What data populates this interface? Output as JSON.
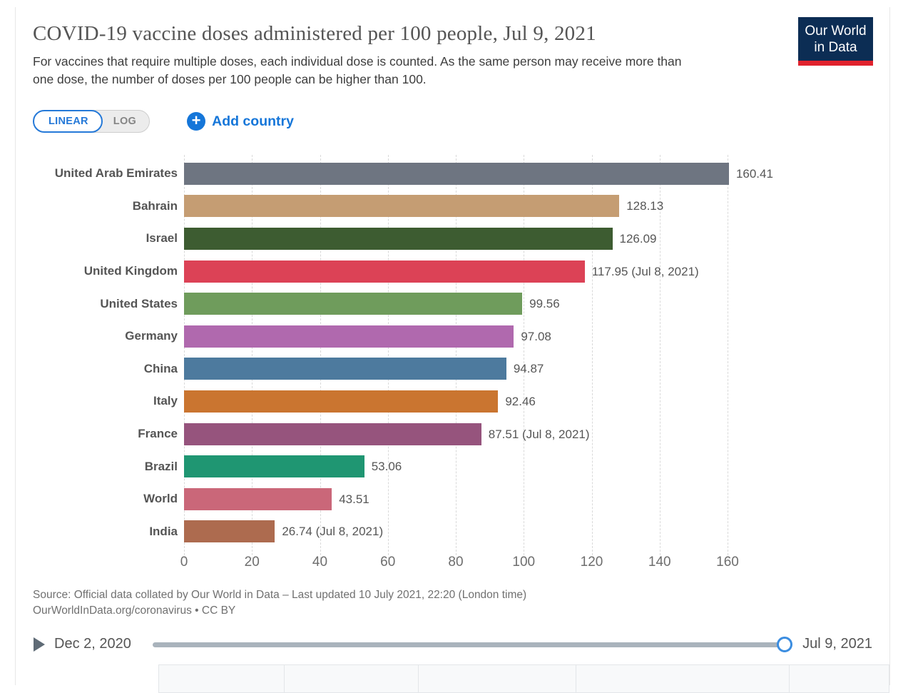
{
  "header": {
    "title": "COVID-19 vaccine doses administered per 100 people, Jul 9, 2021",
    "subtitle": "For vaccines that require multiple doses, each individual dose is counted. As the same person may receive more than one dose, the number of doses per 100 people can be higher than 100.",
    "logo": {
      "line1": "Our World",
      "line2": "in Data",
      "bg_color": "#0c2d54",
      "accent_color": "#e0222d"
    }
  },
  "controls": {
    "linear_label": "LINEAR",
    "log_label": "LOG",
    "add_country_label": "Add country",
    "accent_blue": "#1576d9"
  },
  "chart_data": {
    "type": "bar",
    "orientation": "horizontal",
    "title": "COVID-19 vaccine doses administered per 100 people, Jul 9, 2021",
    "xlim": [
      0,
      160
    ],
    "ticks": [
      0,
      20,
      40,
      60,
      80,
      100,
      120,
      140,
      160
    ],
    "grid": "dashed-vertical",
    "legend_position": "none",
    "bars": [
      {
        "country": "United Arab Emirates",
        "value": 160.41,
        "label": "160.41",
        "color": "#6e7581"
      },
      {
        "country": "Bahrain",
        "value": 128.13,
        "label": "128.13",
        "color": "#c59d73"
      },
      {
        "country": "Israel",
        "value": 126.09,
        "label": "126.09",
        "color": "#3d5c31"
      },
      {
        "country": "United Kingdom",
        "value": 117.95,
        "label": "117.95 (Jul 8, 2021)",
        "color": "#dc4256"
      },
      {
        "country": "United States",
        "value": 99.56,
        "label": "99.56",
        "color": "#6f9c5c"
      },
      {
        "country": "Germany",
        "value": 97.08,
        "label": "97.08",
        "color": "#b069ae"
      },
      {
        "country": "China",
        "value": 94.87,
        "label": "94.87",
        "color": "#4d7a9e"
      },
      {
        "country": "Italy",
        "value": 92.46,
        "label": "92.46",
        "color": "#ca7530"
      },
      {
        "country": "France",
        "value": 87.51,
        "label": "87.51 (Jul 8, 2021)",
        "color": "#96547d"
      },
      {
        "country": "Brazil",
        "value": 53.06,
        "label": "53.06",
        "color": "#1f9672"
      },
      {
        "country": "World",
        "value": 43.51,
        "label": "43.51",
        "color": "#ca6779"
      },
      {
        "country": "India",
        "value": 26.74,
        "label": "26.74 (Jul 8, 2021)",
        "color": "#ad6b4f"
      }
    ]
  },
  "footer": {
    "source_line1": "Source: Official data collated by Our World in Data – Last updated 10 July 2021, 22:20 (London time)",
    "source_line2": "OurWorldInData.org/coronavirus • CC BY"
  },
  "timeline": {
    "start_date": "Dec 2, 2020",
    "end_date": "Jul 9, 2021"
  }
}
